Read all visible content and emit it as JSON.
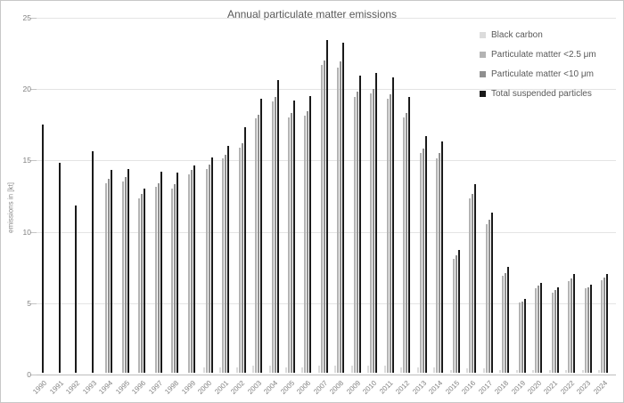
{
  "window": {
    "background": "#ffffff",
    "border_color": "#c8c8c8"
  },
  "chart_data": {
    "type": "bar",
    "title": "Annual particulate matter emissions",
    "ylabel": "emissions in [kt]",
    "xlabel": "",
    "ylim": [
      0,
      25
    ],
    "yticks": [
      0,
      5,
      10,
      15,
      20,
      25
    ],
    "grid": "horizontal",
    "legend_position": "top-right",
    "categories": [
      "1990",
      "1991",
      "1992",
      "1993",
      "1994",
      "1995",
      "1996",
      "1997",
      "1998",
      "1999",
      "2000",
      "2001",
      "2002",
      "2003",
      "2004",
      "2005",
      "2006",
      "2007",
      "2008",
      "2009",
      "2010",
      "2011",
      "2012",
      "2013",
      "2014",
      "2015",
      "2016",
      "2017",
      "2018",
      "2019",
      "2020",
      "2021",
      "2022",
      "2023",
      "2024"
    ],
    "series": [
      {
        "name": "Black carbon",
        "color": "#dcdcdc",
        "values": [
          null,
          null,
          null,
          null,
          null,
          null,
          null,
          null,
          null,
          null,
          0.4,
          0.4,
          0.4,
          0.5,
          0.5,
          0.4,
          0.4,
          0.5,
          0.5,
          0.5,
          0.5,
          0.5,
          0.4,
          0.4,
          0.4,
          0.2,
          0.3,
          0.3,
          0.2,
          0.2,
          0.2,
          0.2,
          0.2,
          0.2,
          0.2
        ]
      },
      {
        "name": "Particulate matter <2.5 μm",
        "color": "#b3b3b3",
        "values": [
          null,
          null,
          null,
          null,
          13.3,
          13.4,
          12.2,
          13.0,
          12.9,
          13.9,
          14.3,
          15.0,
          15.8,
          17.8,
          19.0,
          17.9,
          18.0,
          21.6,
          21.4,
          19.3,
          19.6,
          19.2,
          17.9,
          15.4,
          15.0,
          8.0,
          12.2,
          10.4,
          6.8,
          4.9,
          5.9,
          5.6,
          6.4,
          5.9,
          6.5
        ]
      },
      {
        "name": "Particulate matter <10 μm",
        "color": "#8f8f8f",
        "values": [
          null,
          null,
          null,
          null,
          13.6,
          13.7,
          12.5,
          13.3,
          13.2,
          14.2,
          14.6,
          15.3,
          16.1,
          18.1,
          19.3,
          18.2,
          18.3,
          21.9,
          21.8,
          19.7,
          19.9,
          19.5,
          18.2,
          15.7,
          15.4,
          8.2,
          12.5,
          10.7,
          7.0,
          5.0,
          6.1,
          5.8,
          6.6,
          6.0,
          6.7
        ]
      },
      {
        "name": "Total suspended particles",
        "color": "#1a1a1a",
        "values": [
          17.4,
          14.7,
          11.7,
          15.5,
          14.2,
          14.3,
          12.9,
          14.1,
          14.0,
          14.5,
          15.1,
          15.9,
          17.2,
          19.2,
          20.5,
          19.1,
          19.4,
          23.3,
          23.1,
          20.8,
          21.0,
          20.7,
          19.3,
          16.6,
          16.2,
          8.6,
          13.2,
          11.2,
          7.4,
          5.2,
          6.3,
          6.0,
          6.9,
          6.2,
          6.9
        ]
      }
    ]
  }
}
